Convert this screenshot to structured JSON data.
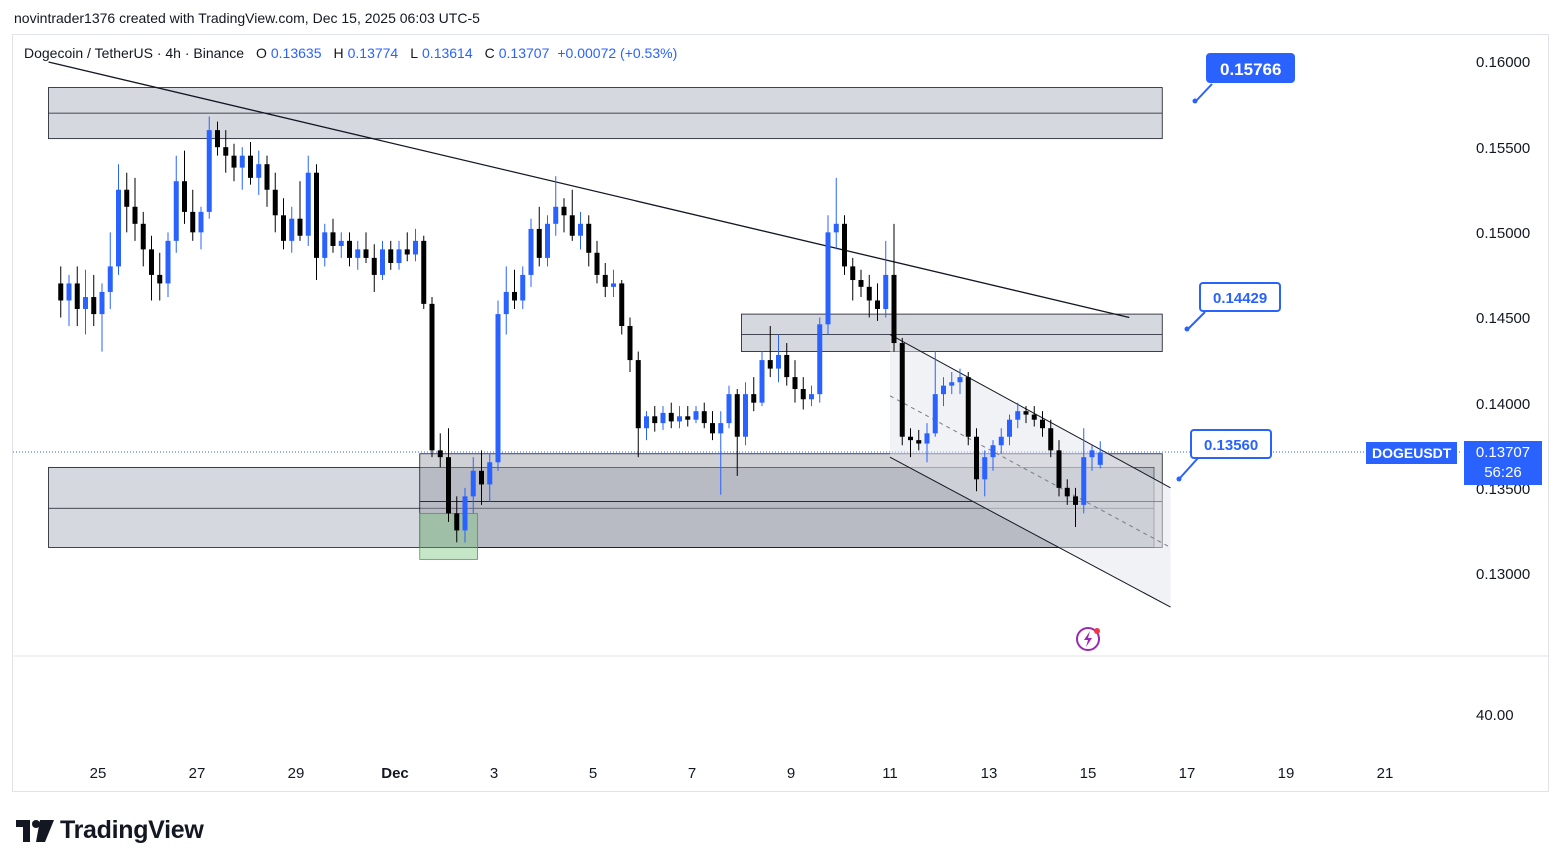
{
  "header": {
    "byline": "novintrader1376 created with TradingView.com, Dec 15, 2025 06:03 UTC-5"
  },
  "legend": {
    "symbol": "Dogecoin / TetherUS · 4h · Binance",
    "o_label": "O",
    "o": "0.13635",
    "h_label": "H",
    "h": "0.13774",
    "l_label": "L",
    "l": "0.13614",
    "c_label": "C",
    "c": "0.13707",
    "change": "+0.00072 (+0.53%)"
  },
  "price_scale": {
    "ticks": [
      "0.16000",
      "0.15500",
      "0.15000",
      "0.14500",
      "0.14000",
      "0.13500",
      "0.13000"
    ],
    "indicator_tick": "40.00",
    "last_price": "0.13707",
    "countdown": "56:26",
    "symbol_tag": "DOGEUSDT"
  },
  "time_scale": {
    "labels": [
      "25",
      "27",
      "29",
      "Dec",
      "3",
      "5",
      "7",
      "9",
      "11",
      "13",
      "15",
      "17",
      "19",
      "21"
    ]
  },
  "callouts": {
    "top": "0.15766",
    "mid": "0.14429",
    "low": "0.13560"
  },
  "footer": {
    "brand": "TradingView"
  },
  "colors": {
    "up": "#2962ff",
    "down": "#000000",
    "accent": "#2962ff",
    "zone": "#d1d4dc",
    "demand": "#81c784"
  },
  "chart_data": {
    "type": "candlestick",
    "timeframe": "4h",
    "ylim": [
      0.1265,
      0.162
    ],
    "ohlc": [
      {
        "t": "Nov 24 04:00",
        "o": 0.147,
        "h": 0.148,
        "l": 0.145,
        "c": 0.146
      },
      {
        "t": "Nov 24 08:00",
        "o": 0.146,
        "h": 0.1475,
        "l": 0.1445,
        "c": 0.147
      },
      {
        "t": "Nov 24 12:00",
        "o": 0.147,
        "h": 0.148,
        "l": 0.1445,
        "c": 0.1455
      },
      {
        "t": "Nov 24 16:00",
        "o": 0.1455,
        "h": 0.1478,
        "l": 0.144,
        "c": 0.1462
      },
      {
        "t": "Nov 24 20:00",
        "o": 0.1462,
        "h": 0.1475,
        "l": 0.1445,
        "c": 0.1452
      },
      {
        "t": "Nov 25 00:00",
        "o": 0.1452,
        "h": 0.147,
        "l": 0.143,
        "c": 0.1465
      },
      {
        "t": "Nov 25 04:00",
        "o": 0.1465,
        "h": 0.15,
        "l": 0.1455,
        "c": 0.148
      },
      {
        "t": "Nov 25 08:00",
        "o": 0.148,
        "h": 0.154,
        "l": 0.1475,
        "c": 0.1525
      },
      {
        "t": "Nov 25 12:00",
        "o": 0.1525,
        "h": 0.1535,
        "l": 0.15,
        "c": 0.1515
      },
      {
        "t": "Nov 25 16:00",
        "o": 0.1515,
        "h": 0.1532,
        "l": 0.1495,
        "c": 0.1505
      },
      {
        "t": "Nov 25 20:00",
        "o": 0.1505,
        "h": 0.1512,
        "l": 0.148,
        "c": 0.149
      },
      {
        "t": "Nov 26 00:00",
        "o": 0.149,
        "h": 0.1498,
        "l": 0.146,
        "c": 0.1475
      },
      {
        "t": "Nov 26 04:00",
        "o": 0.1475,
        "h": 0.1488,
        "l": 0.146,
        "c": 0.147
      },
      {
        "t": "Nov 26 08:00",
        "o": 0.147,
        "h": 0.15,
        "l": 0.1462,
        "c": 0.1495
      },
      {
        "t": "Nov 26 12:00",
        "o": 0.1495,
        "h": 0.1545,
        "l": 0.1488,
        "c": 0.153
      },
      {
        "t": "Nov 26 16:00",
        "o": 0.153,
        "h": 0.1548,
        "l": 0.1505,
        "c": 0.1512
      },
      {
        "t": "Nov 26 20:00",
        "o": 0.1512,
        "h": 0.1525,
        "l": 0.1495,
        "c": 0.15
      },
      {
        "t": "Nov 27 00:00",
        "o": 0.15,
        "h": 0.1515,
        "l": 0.149,
        "c": 0.1512
      },
      {
        "t": "Nov 27 04:00",
        "o": 0.1512,
        "h": 0.1568,
        "l": 0.1508,
        "c": 0.156
      },
      {
        "t": "Nov 27 08:00",
        "o": 0.156,
        "h": 0.1565,
        "l": 0.1545,
        "c": 0.155
      },
      {
        "t": "Nov 27 12:00",
        "o": 0.155,
        "h": 0.156,
        "l": 0.1535,
        "c": 0.1545
      },
      {
        "t": "Nov 27 16:00",
        "o": 0.1545,
        "h": 0.1552,
        "l": 0.153,
        "c": 0.1538
      },
      {
        "t": "Nov 27 20:00",
        "o": 0.1538,
        "h": 0.155,
        "l": 0.1525,
        "c": 0.1545
      },
      {
        "t": "Nov 28 00:00",
        "o": 0.1545,
        "h": 0.1553,
        "l": 0.1528,
        "c": 0.1532
      },
      {
        "t": "Nov 28 04:00",
        "o": 0.1532,
        "h": 0.1548,
        "l": 0.1522,
        "c": 0.154
      },
      {
        "t": "Nov 28 08:00",
        "o": 0.154,
        "h": 0.1545,
        "l": 0.1515,
        "c": 0.1525
      },
      {
        "t": "Nov 28 12:00",
        "o": 0.1525,
        "h": 0.1535,
        "l": 0.15,
        "c": 0.151
      },
      {
        "t": "Nov 28 16:00",
        "o": 0.151,
        "h": 0.152,
        "l": 0.149,
        "c": 0.1495
      },
      {
        "t": "Nov 28 20:00",
        "o": 0.1495,
        "h": 0.1515,
        "l": 0.1488,
        "c": 0.1508
      },
      {
        "t": "Nov 29 00:00",
        "o": 0.1508,
        "h": 0.153,
        "l": 0.1495,
        "c": 0.1498
      },
      {
        "t": "Nov 29 04:00",
        "o": 0.1498,
        "h": 0.1545,
        "l": 0.1492,
        "c": 0.1535
      },
      {
        "t": "Nov 29 08:00",
        "o": 0.1535,
        "h": 0.154,
        "l": 0.1472,
        "c": 0.1485
      },
      {
        "t": "Nov 29 12:00",
        "o": 0.1485,
        "h": 0.1505,
        "l": 0.148,
        "c": 0.15
      },
      {
        "t": "Nov 29 16:00",
        "o": 0.15,
        "h": 0.1508,
        "l": 0.1488,
        "c": 0.1492
      },
      {
        "t": "Nov 29 20:00",
        "o": 0.1492,
        "h": 0.15,
        "l": 0.1485,
        "c": 0.1495
      },
      {
        "t": "Nov 30 00:00",
        "o": 0.1495,
        "h": 0.15,
        "l": 0.148,
        "c": 0.1485
      },
      {
        "t": "Nov 30 04:00",
        "o": 0.1485,
        "h": 0.1495,
        "l": 0.1478,
        "c": 0.149
      },
      {
        "t": "Nov 30 08:00",
        "o": 0.149,
        "h": 0.15,
        "l": 0.1482,
        "c": 0.1485
      },
      {
        "t": "Nov 30 12:00",
        "o": 0.1485,
        "h": 0.1493,
        "l": 0.1465,
        "c": 0.1475
      },
      {
        "t": "Nov 30 16:00",
        "o": 0.1475,
        "h": 0.1495,
        "l": 0.1472,
        "c": 0.149
      },
      {
        "t": "Nov 30 20:00",
        "o": 0.149,
        "h": 0.1495,
        "l": 0.1478,
        "c": 0.1482
      },
      {
        "t": "Dec 01 00:00",
        "o": 0.1482,
        "h": 0.1495,
        "l": 0.1478,
        "c": 0.149
      },
      {
        "t": "Dec 01 04:00",
        "o": 0.149,
        "h": 0.15,
        "l": 0.1483,
        "c": 0.1487
      },
      {
        "t": "Dec 01 08:00",
        "o": 0.1487,
        "h": 0.1502,
        "l": 0.1483,
        "c": 0.1495
      },
      {
        "t": "Dec 01 12:00",
        "o": 0.1495,
        "h": 0.1498,
        "l": 0.1455,
        "c": 0.1458
      },
      {
        "t": "Dec 01 16:00",
        "o": 0.1458,
        "h": 0.1462,
        "l": 0.1368,
        "c": 0.1372
      },
      {
        "t": "Dec 01 20:00",
        "o": 0.1372,
        "h": 0.1382,
        "l": 0.1362,
        "c": 0.1368
      },
      {
        "t": "Dec 02 00:00",
        "o": 0.1368,
        "h": 0.1385,
        "l": 0.133,
        "c": 0.1335
      },
      {
        "t": "Dec 02 04:00",
        "o": 0.1335,
        "h": 0.1345,
        "l": 0.1318,
        "c": 0.1325
      },
      {
        "t": "Dec 02 08:00",
        "o": 0.1325,
        "h": 0.135,
        "l": 0.1318,
        "c": 0.1345
      },
      {
        "t": "Dec 02 12:00",
        "o": 0.1345,
        "h": 0.1368,
        "l": 0.1335,
        "c": 0.136
      },
      {
        "t": "Dec 02 16:00",
        "o": 0.136,
        "h": 0.1372,
        "l": 0.134,
        "c": 0.1352
      },
      {
        "t": "Dec 02 20:00",
        "o": 0.1352,
        "h": 0.137,
        "l": 0.1342,
        "c": 0.1365
      },
      {
        "t": "Dec 03 00:00",
        "o": 0.1365,
        "h": 0.146,
        "l": 0.136,
        "c": 0.1452
      },
      {
        "t": "Dec 03 04:00",
        "o": 0.1452,
        "h": 0.148,
        "l": 0.144,
        "c": 0.1465
      },
      {
        "t": "Dec 03 08:00",
        "o": 0.1465,
        "h": 0.1478,
        "l": 0.1455,
        "c": 0.146
      },
      {
        "t": "Dec 03 12:00",
        "o": 0.146,
        "h": 0.148,
        "l": 0.1455,
        "c": 0.1475
      },
      {
        "t": "Dec 03 16:00",
        "o": 0.1475,
        "h": 0.1508,
        "l": 0.1468,
        "c": 0.1502
      },
      {
        "t": "Dec 03 20:00",
        "o": 0.1502,
        "h": 0.1515,
        "l": 0.148,
        "c": 0.1485
      },
      {
        "t": "Dec 04 00:00",
        "o": 0.1485,
        "h": 0.151,
        "l": 0.148,
        "c": 0.1505
      },
      {
        "t": "Dec 04 04:00",
        "o": 0.1505,
        "h": 0.1533,
        "l": 0.1498,
        "c": 0.1515
      },
      {
        "t": "Dec 04 08:00",
        "o": 0.1515,
        "h": 0.152,
        "l": 0.15,
        "c": 0.151
      },
      {
        "t": "Dec 04 12:00",
        "o": 0.151,
        "h": 0.1525,
        "l": 0.1495,
        "c": 0.1498
      },
      {
        "t": "Dec 04 16:00",
        "o": 0.1498,
        "h": 0.1512,
        "l": 0.149,
        "c": 0.1505
      },
      {
        "t": "Dec 04 20:00",
        "o": 0.1505,
        "h": 0.151,
        "l": 0.148,
        "c": 0.1488
      },
      {
        "t": "Dec 05 00:00",
        "o": 0.1488,
        "h": 0.1495,
        "l": 0.147,
        "c": 0.1475
      },
      {
        "t": "Dec 05 04:00",
        "o": 0.1475,
        "h": 0.1482,
        "l": 0.1462,
        "c": 0.1468
      },
      {
        "t": "Dec 05 08:00",
        "o": 0.1468,
        "h": 0.1478,
        "l": 0.1462,
        "c": 0.147
      },
      {
        "t": "Dec 05 12:00",
        "o": 0.147,
        "h": 0.1472,
        "l": 0.144,
        "c": 0.1445
      },
      {
        "t": "Dec 05 16:00",
        "o": 0.1445,
        "h": 0.145,
        "l": 0.1418,
        "c": 0.1425
      },
      {
        "t": "Dec 05 20:00",
        "o": 0.1425,
        "h": 0.143,
        "l": 0.1368,
        "c": 0.1385
      },
      {
        "t": "Dec 06 00:00",
        "o": 0.1385,
        "h": 0.1395,
        "l": 0.1378,
        "c": 0.1392
      },
      {
        "t": "Dec 06 04:00",
        "o": 0.1392,
        "h": 0.1398,
        "l": 0.1383,
        "c": 0.1388
      },
      {
        "t": "Dec 06 08:00",
        "o": 0.1388,
        "h": 0.1398,
        "l": 0.1384,
        "c": 0.1394
      },
      {
        "t": "Dec 06 12:00",
        "o": 0.1394,
        "h": 0.14,
        "l": 0.1385,
        "c": 0.1389
      },
      {
        "t": "Dec 06 16:00",
        "o": 0.1389,
        "h": 0.1398,
        "l": 0.1385,
        "c": 0.1392
      },
      {
        "t": "Dec 06 20:00",
        "o": 0.1392,
        "h": 0.1398,
        "l": 0.1386,
        "c": 0.139
      },
      {
        "t": "Dec 07 00:00",
        "o": 0.139,
        "h": 0.1398,
        "l": 0.1388,
        "c": 0.1395
      },
      {
        "t": "Dec 07 04:00",
        "o": 0.1395,
        "h": 0.14,
        "l": 0.1385,
        "c": 0.1388
      },
      {
        "t": "Dec 07 08:00",
        "o": 0.1388,
        "h": 0.1395,
        "l": 0.1378,
        "c": 0.1382
      },
      {
        "t": "Dec 07 12:00",
        "o": 0.1382,
        "h": 0.1395,
        "l": 0.1346,
        "c": 0.1388
      },
      {
        "t": "Dec 07 16:00",
        "o": 0.1388,
        "h": 0.141,
        "l": 0.1385,
        "c": 0.1405
      },
      {
        "t": "Dec 07 20:00",
        "o": 0.1405,
        "h": 0.1408,
        "l": 0.1357,
        "c": 0.138
      },
      {
        "t": "Dec 08 00:00",
        "o": 0.138,
        "h": 0.1412,
        "l": 0.1375,
        "c": 0.1405
      },
      {
        "t": "Dec 08 04:00",
        "o": 0.1405,
        "h": 0.1415,
        "l": 0.1395,
        "c": 0.14
      },
      {
        "t": "Dec 08 08:00",
        "o": 0.14,
        "h": 0.143,
        "l": 0.1398,
        "c": 0.1425
      },
      {
        "t": "Dec 08 12:00",
        "o": 0.1425,
        "h": 0.1445,
        "l": 0.1415,
        "c": 0.142
      },
      {
        "t": "Dec 08 16:00",
        "o": 0.142,
        "h": 0.144,
        "l": 0.1412,
        "c": 0.1428
      },
      {
        "t": "Dec 08 20:00",
        "o": 0.1428,
        "h": 0.1435,
        "l": 0.141,
        "c": 0.1415
      },
      {
        "t": "Dec 09 00:00",
        "o": 0.1415,
        "h": 0.1425,
        "l": 0.14,
        "c": 0.1408
      },
      {
        "t": "Dec 09 04:00",
        "o": 0.1408,
        "h": 0.1415,
        "l": 0.1396,
        "c": 0.1402
      },
      {
        "t": "Dec 09 08:00",
        "o": 0.1402,
        "h": 0.141,
        "l": 0.1398,
        "c": 0.1405
      },
      {
        "t": "Dec 09 12:00",
        "o": 0.1405,
        "h": 0.145,
        "l": 0.14,
        "c": 0.1446
      },
      {
        "t": "Dec 09 16:00",
        "o": 0.1446,
        "h": 0.151,
        "l": 0.144,
        "c": 0.15
      },
      {
        "t": "Dec 09 20:00",
        "o": 0.15,
        "h": 0.1532,
        "l": 0.149,
        "c": 0.1505
      },
      {
        "t": "Dec 10 00:00",
        "o": 0.1505,
        "h": 0.151,
        "l": 0.1475,
        "c": 0.148
      },
      {
        "t": "Dec 10 04:00",
        "o": 0.148,
        "h": 0.1485,
        "l": 0.146,
        "c": 0.1472
      },
      {
        "t": "Dec 10 08:00",
        "o": 0.1472,
        "h": 0.1478,
        "l": 0.1462,
        "c": 0.1468
      },
      {
        "t": "Dec 10 12:00",
        "o": 0.1468,
        "h": 0.1475,
        "l": 0.145,
        "c": 0.146
      },
      {
        "t": "Dec 10 16:00",
        "o": 0.146,
        "h": 0.147,
        "l": 0.1448,
        "c": 0.1455
      },
      {
        "t": "Dec 10 20:00",
        "o": 0.1455,
        "h": 0.1495,
        "l": 0.145,
        "c": 0.1475
      },
      {
        "t": "Dec 11 00:00",
        "o": 0.1475,
        "h": 0.1505,
        "l": 0.143,
        "c": 0.1435
      },
      {
        "t": "Dec 11 04:00",
        "o": 0.1435,
        "h": 0.1438,
        "l": 0.1375,
        "c": 0.138
      },
      {
        "t": "Dec 11 08:00",
        "o": 0.138,
        "h": 0.1385,
        "l": 0.1368,
        "c": 0.1378
      },
      {
        "t": "Dec 11 12:00",
        "o": 0.1378,
        "h": 0.1384,
        "l": 0.1372,
        "c": 0.1376
      },
      {
        "t": "Dec 11 16:00",
        "o": 0.1376,
        "h": 0.1388,
        "l": 0.1365,
        "c": 0.1382
      },
      {
        "t": "Dec 11 20:00",
        "o": 0.1382,
        "h": 0.143,
        "l": 0.138,
        "c": 0.1405
      },
      {
        "t": "Dec 12 00:00",
        "o": 0.1405,
        "h": 0.1415,
        "l": 0.1398,
        "c": 0.141
      },
      {
        "t": "Dec 12 04:00",
        "o": 0.141,
        "h": 0.1418,
        "l": 0.1405,
        "c": 0.1412
      },
      {
        "t": "Dec 12 08:00",
        "o": 0.1412,
        "h": 0.142,
        "l": 0.1405,
        "c": 0.1415
      },
      {
        "t": "Dec 12 12:00",
        "o": 0.1415,
        "h": 0.1418,
        "l": 0.1375,
        "c": 0.138
      },
      {
        "t": "Dec 12 16:00",
        "o": 0.138,
        "h": 0.1385,
        "l": 0.1348,
        "c": 0.1355
      },
      {
        "t": "Dec 12 20:00",
        "o": 0.1355,
        "h": 0.1372,
        "l": 0.1345,
        "c": 0.1368
      },
      {
        "t": "Dec 13 00:00",
        "o": 0.1368,
        "h": 0.1378,
        "l": 0.136,
        "c": 0.1375
      },
      {
        "t": "Dec 13 04:00",
        "o": 0.1375,
        "h": 0.1385,
        "l": 0.137,
        "c": 0.138
      },
      {
        "t": "Dec 13 08:00",
        "o": 0.138,
        "h": 0.1393,
        "l": 0.1375,
        "c": 0.139
      },
      {
        "t": "Dec 13 12:00",
        "o": 0.139,
        "h": 0.14,
        "l": 0.1385,
        "c": 0.1395
      },
      {
        "t": "Dec 13 16:00",
        "o": 0.1395,
        "h": 0.1398,
        "l": 0.1388,
        "c": 0.1393
      },
      {
        "t": "Dec 13 20:00",
        "o": 0.1393,
        "h": 0.1398,
        "l": 0.1386,
        "c": 0.139
      },
      {
        "t": "Dec 14 00:00",
        "o": 0.139,
        "h": 0.1395,
        "l": 0.138,
        "c": 0.1385
      },
      {
        "t": "Dec 14 04:00",
        "o": 0.1385,
        "h": 0.139,
        "l": 0.1368,
        "c": 0.1372
      },
      {
        "t": "Dec 14 08:00",
        "o": 0.1372,
        "h": 0.1378,
        "l": 0.1345,
        "c": 0.135
      },
      {
        "t": "Dec 14 12:00",
        "o": 0.135,
        "h": 0.1355,
        "l": 0.134,
        "c": 0.1345
      },
      {
        "t": "Dec 14 16:00",
        "o": 0.1345,
        "h": 0.135,
        "l": 0.1327,
        "c": 0.134
      },
      {
        "t": "Dec 14 20:00",
        "o": 0.134,
        "h": 0.1385,
        "l": 0.1335,
        "c": 0.1368
      },
      {
        "t": "Dec 15 00:00",
        "o": 0.1368,
        "h": 0.1375,
        "l": 0.136,
        "c": 0.1372
      },
      {
        "t": "Dec 15 04:00",
        "o": 0.13635,
        "h": 0.13774,
        "l": 0.13614,
        "c": 0.13707
      }
    ],
    "zones": [
      {
        "from": "Nov 24 00:00",
        "to": "Dec 16 12:00",
        "low": 0.1555,
        "high": 0.1585,
        "mid": 0.157
      },
      {
        "from": "Dec 08 00:00",
        "to": "Dec 16 12:00",
        "low": 0.143,
        "high": 0.1452,
        "mid": 0.144
      },
      {
        "from": "Nov 24 00:00",
        "to": "Dec 16 08:00",
        "low": 0.1315,
        "high": 0.1362,
        "mid": 0.1338
      },
      {
        "from": "Dec 01 12:00",
        "to": "Dec 16 12:00",
        "low": 0.1315,
        "high": 0.137,
        "mid": 0.1342
      }
    ],
    "demand_box": {
      "from": "Dec 01 12:00",
      "to": "Dec 02 16:00",
      "low": 0.1308,
      "high": 0.1335
    },
    "trendline": {
      "from": {
        "t": "Nov 24 00:00",
        "p": 0.16
      },
      "to": {
        "t": "Dec 15 20:00",
        "p": 0.145
      }
    },
    "channel": {
      "upper": {
        "from": {
          "t": "Dec 11 00:00",
          "p": 0.144
        },
        "to": {
          "t": "Dec 16 16:00",
          "p": 0.135
        }
      },
      "lower": {
        "from": {
          "t": "Dec 11 00:00",
          "p": 0.1368
        },
        "to": {
          "t": "Dec 16 16:00",
          "p": 0.128
        }
      }
    }
  }
}
